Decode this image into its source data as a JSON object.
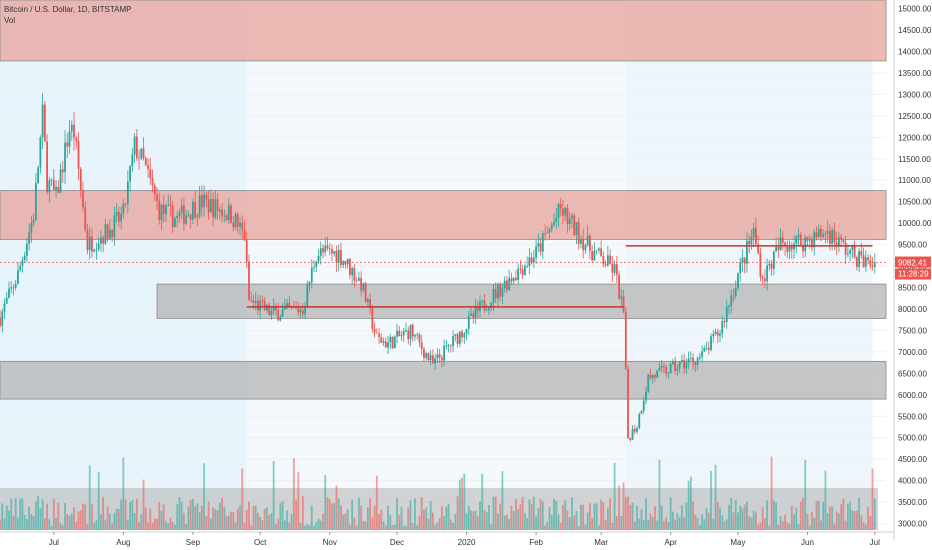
{
  "chart_data": {
    "type": "candlestick",
    "title": "Bitcoin / U.S. Dollar, 1D, BITSTAMP",
    "indicator_label": "Vol",
    "ylim": [
      2850,
      15200
    ],
    "y_ticks": [
      3000,
      3500,
      4000,
      4500,
      5000,
      5500,
      6000,
      6500,
      7000,
      7500,
      8000,
      8500,
      9000,
      9500,
      10000,
      10500,
      11000,
      11500,
      12000,
      12500,
      13000,
      13500,
      14000,
      14500,
      15000
    ],
    "y_tick_labels": [
      "3000.00",
      "3500.00",
      "4000.00",
      "4500.00",
      "5000.00",
      "5500.00",
      "6000.00",
      "6500.00",
      "7000.00",
      "7500.00",
      "8000.00",
      "8500.00",
      "9000.00",
      "9500.00",
      "10000.00",
      "10500.00",
      "11000.00",
      "11500.00",
      "12000.00",
      "12500.00",
      "13000.00",
      "13500.00",
      "14000.00",
      "14500.00",
      "15000.00"
    ],
    "x_range": [
      "2019-06-07",
      "2020-07-06"
    ],
    "x_ticks": [
      {
        "date": "2019-07-01",
        "label": "Jul"
      },
      {
        "date": "2019-08-01",
        "label": "Aug"
      },
      {
        "date": "2019-09-01",
        "label": "Sep"
      },
      {
        "date": "2019-10-01",
        "label": "Oct"
      },
      {
        "date": "2019-11-01",
        "label": "Nov"
      },
      {
        "date": "2019-12-01",
        "label": "Dec"
      },
      {
        "date": "2020-01-01",
        "label": "2020"
      },
      {
        "date": "2020-02-01",
        "label": "Feb"
      },
      {
        "date": "2020-03-01",
        "label": "Mar"
      },
      {
        "date": "2020-04-01",
        "label": "Apr"
      },
      {
        "date": "2020-05-01",
        "label": "May"
      },
      {
        "date": "2020-06-01",
        "label": "Jun"
      },
      {
        "date": "2020-07-01",
        "label": "Jul"
      }
    ],
    "price_path": [
      [
        "2019-06-07",
        7800
      ],
      [
        "2019-06-15",
        8800
      ],
      [
        "2019-06-22",
        10200
      ],
      [
        "2019-06-26",
        12500
      ],
      [
        "2019-06-28",
        11000
      ],
      [
        "2019-07-02",
        10600
      ],
      [
        "2019-07-08",
        12200
      ],
      [
        "2019-07-10",
        12100
      ],
      [
        "2019-07-16",
        9500
      ],
      [
        "2019-07-25",
        9800
      ],
      [
        "2019-08-01",
        10200
      ],
      [
        "2019-08-06",
        11800
      ],
      [
        "2019-08-10",
        11400
      ],
      [
        "2019-08-17",
        10300
      ],
      [
        "2019-08-25",
        10100
      ],
      [
        "2019-09-05",
        10500
      ],
      [
        "2019-09-18",
        10200
      ],
      [
        "2019-09-24",
        9700
      ],
      [
        "2019-09-26",
        8200
      ],
      [
        "2019-10-06",
        7900
      ],
      [
        "2019-10-20",
        8000
      ],
      [
        "2019-10-26",
        9300
      ],
      [
        "2019-11-05",
        9300
      ],
      [
        "2019-11-15",
        8600
      ],
      [
        "2019-11-22",
        7300
      ],
      [
        "2019-11-27",
        7200
      ],
      [
        "2019-12-07",
        7500
      ],
      [
        "2019-12-17",
        6700
      ],
      [
        "2019-12-27",
        7300
      ],
      [
        "2020-01-07",
        8000
      ],
      [
        "2020-01-20",
        8700
      ],
      [
        "2020-02-01",
        9300
      ],
      [
        "2020-02-12",
        10300
      ],
      [
        "2020-02-25",
        9400
      ],
      [
        "2020-03-07",
        8900
      ],
      [
        "2020-03-11",
        7900
      ],
      [
        "2020-03-13",
        5000
      ],
      [
        "2020-03-17",
        5300
      ],
      [
        "2020-03-22",
        6400
      ],
      [
        "2020-04-01",
        6600
      ],
      [
        "2020-04-15",
        6900
      ],
      [
        "2020-04-23",
        7500
      ],
      [
        "2020-05-01",
        8800
      ],
      [
        "2020-05-08",
        9800
      ],
      [
        "2020-05-12",
        8700
      ],
      [
        "2020-05-20",
        9500
      ],
      [
        "2020-06-01",
        9600
      ],
      [
        "2020-06-10",
        9800
      ],
      [
        "2020-06-20",
        9300
      ],
      [
        "2020-06-28",
        9050
      ],
      [
        "2020-07-01",
        9082
      ]
    ],
    "last_price": 9082.41,
    "last_price_label": "9082.41",
    "countdown_label": "11:28:29",
    "zones": [
      {
        "name": "resistance-top",
        "from": 13780,
        "to": 15200,
        "color": "#e8a39b"
      },
      {
        "name": "resistance-mid",
        "from": 9620,
        "to": 10760,
        "color": "#e8a39b"
      },
      {
        "name": "support-1",
        "start": "2019-08-16",
        "end": "2020-07-06",
        "from": 7780,
        "to": 8580,
        "color": "#b4b4b4"
      },
      {
        "name": "support-2",
        "start": "2019-06-07",
        "end": "2020-07-06",
        "from": 5900,
        "to": 6780,
        "color": "#b4b4b4"
      }
    ],
    "horizontal_levels": [
      {
        "name": "poc-1",
        "start": "2019-09-25",
        "end": "2020-03-11",
        "y": 8050,
        "color": "#c0392b"
      },
      {
        "name": "poc-2",
        "start": "2020-03-12",
        "end": "2020-06-30",
        "y": 9470,
        "color": "#c0392b"
      }
    ],
    "shaded_periods": [
      {
        "start": "2019-06-07",
        "end": "2019-09-25",
        "color": "#e8f4fc"
      },
      {
        "start": "2019-09-25",
        "end": "2020-03-12",
        "color": "#f4f9fd"
      },
      {
        "start": "2020-03-12",
        "end": "2020-06-30",
        "color": "#eef6fc"
      }
    ],
    "volume_zone": {
      "from_frac": 0.0,
      "to_frac": 0.62,
      "color": "#b8b8b8"
    },
    "colors": {
      "up": "#26a69a",
      "down": "#ef5350",
      "last_price": "#ef5350",
      "axis_text": "#333333"
    }
  }
}
